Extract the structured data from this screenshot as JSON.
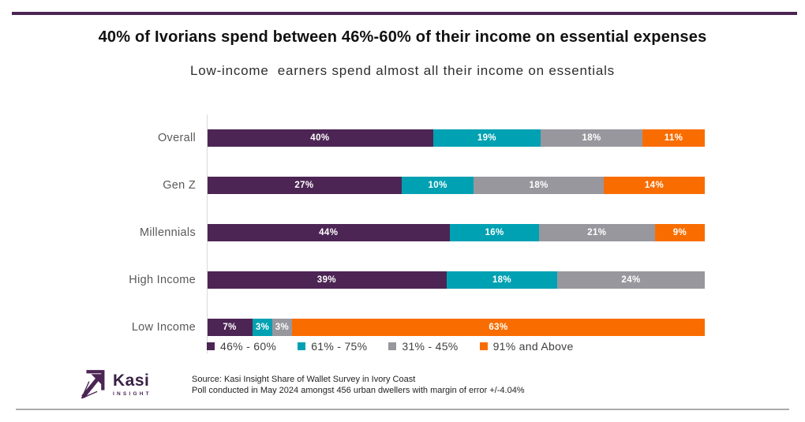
{
  "title": "40% of Ivorians spend between 46%-60% of their income on essential expenses",
  "subtitle": "Low-income  earners spend almost all their income on essentials",
  "chart_data": {
    "type": "bar",
    "orientation": "horizontal",
    "stacked": true,
    "normalized_to_full_width": true,
    "value_suffix": "%",
    "grid": false,
    "legend_position": "bottom",
    "categories": [
      "Overall",
      "Gen Z",
      "Millennials",
      "High Income",
      "Low Income"
    ],
    "series": [
      {
        "name": "46% - 60%",
        "color": "#4C2554",
        "values": [
          40,
          27,
          44,
          39,
          7
        ]
      },
      {
        "name": "61% - 75%",
        "color": "#00A1B2",
        "values": [
          19,
          10,
          16,
          18,
          3
        ]
      },
      {
        "name": "31% - 45%",
        "color": "#98979E",
        "values": [
          18,
          18,
          21,
          24,
          3
        ]
      },
      {
        "name": "91% and Above",
        "color": "#F96D00",
        "values": [
          11,
          14,
          9,
          0,
          63
        ]
      }
    ]
  },
  "footer": {
    "logo_name": "Kasi",
    "logo_sub": "INSIGHT",
    "source_line1": "Source: Kasi Insight Share of Wallet Survey in Ivory Coast",
    "source_line2": "Poll conducted in May 2024 amongst 456 urban dwellers with margin of error +/-4.04%"
  },
  "colors": {
    "accent_purple": "#4C2554",
    "teal": "#00A1B2",
    "gray": "#98979E",
    "orange": "#F96D00",
    "top_rule": "#4C2554",
    "bottom_rule": "#ABABAB",
    "axis_line": "#D9D9D9"
  }
}
